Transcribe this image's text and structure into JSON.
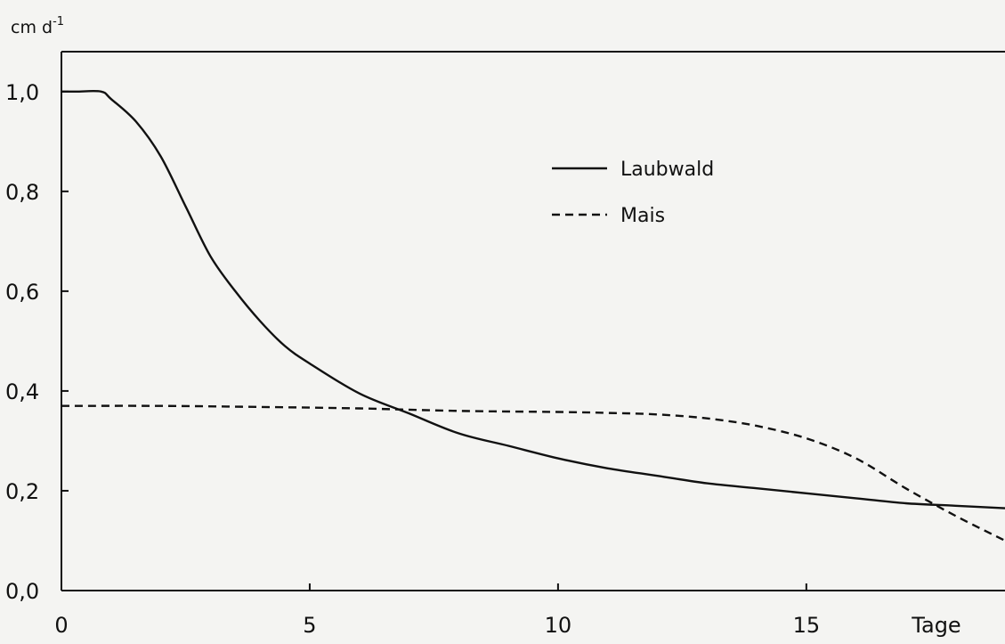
{
  "chart_data": {
    "type": "line",
    "ylabel": "cm d",
    "ylabel_superscript": "-1",
    "xlabel": "Tage",
    "xlim": [
      0,
      19
    ],
    "ylim": [
      0,
      1.08
    ],
    "x_ticks": [
      {
        "value": 0,
        "label": "0"
      },
      {
        "value": 5,
        "label": "5"
      },
      {
        "value": 10,
        "label": "10"
      },
      {
        "value": 15,
        "label": "15"
      }
    ],
    "y_ticks": [
      {
        "value": 0.0,
        "label": "0,0"
      },
      {
        "value": 0.2,
        "label": "0,2"
      },
      {
        "value": 0.4,
        "label": "0,4"
      },
      {
        "value": 0.6,
        "label": "0,6"
      },
      {
        "value": 0.8,
        "label": "0,8"
      },
      {
        "value": 1.0,
        "label": "1,0"
      }
    ],
    "grid": false,
    "legend_position": "top-center",
    "series": [
      {
        "name": "Laubwald",
        "style": "solid",
        "x": [
          0,
          0.3,
          0.8,
          1.0,
          1.5,
          2.0,
          2.5,
          3.0,
          3.5,
          4.0,
          4.5,
          5.0,
          6.0,
          7.0,
          8.0,
          9.0,
          10.0,
          11.0,
          12.0,
          13.0,
          14.0,
          15.0,
          16.0,
          17.0,
          18.0,
          19.0
        ],
        "y": [
          1.0,
          1.0,
          1.0,
          0.985,
          0.94,
          0.87,
          0.77,
          0.67,
          0.6,
          0.54,
          0.49,
          0.455,
          0.395,
          0.355,
          0.315,
          0.29,
          0.265,
          0.245,
          0.23,
          0.215,
          0.205,
          0.195,
          0.185,
          0.175,
          0.17,
          0.165
        ]
      },
      {
        "name": "Mais",
        "style": "dashed",
        "x": [
          0,
          2,
          4,
          6,
          8,
          10,
          11,
          12,
          13,
          14,
          15,
          16,
          17,
          18,
          19
        ],
        "y": [
          0.37,
          0.37,
          0.368,
          0.365,
          0.36,
          0.358,
          0.356,
          0.353,
          0.345,
          0.33,
          0.305,
          0.265,
          0.205,
          0.15,
          0.1
        ]
      }
    ]
  }
}
